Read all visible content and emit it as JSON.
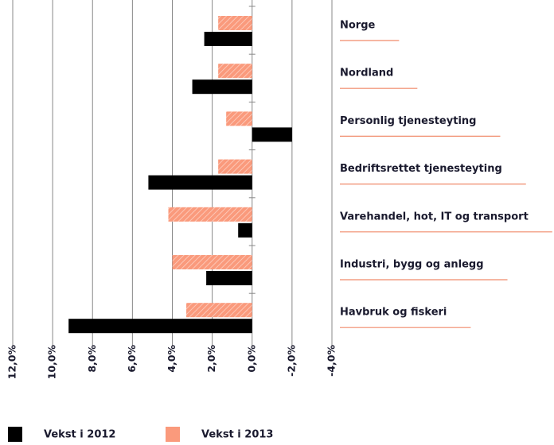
{
  "chart_data": {
    "type": "bar",
    "orientation": "horizontal",
    "reversed_x": true,
    "categories": [
      "Norge",
      "Nordland",
      "Personlig tjenesteyting",
      "Bedriftsrettet tjenesteyting",
      "Varehandel, hot, IT og transport",
      "Industri, bygg og anlegg",
      "Havbruk og fiskeri"
    ],
    "series": [
      {
        "name": "Vekst i 2012",
        "color": "#000000",
        "values": [
          2.4,
          3.0,
          -2.0,
          5.2,
          0.7,
          2.3,
          9.2
        ]
      },
      {
        "name": "Vekst i 2013",
        "color": "#fa9a7c",
        "hatch": true,
        "values": [
          1.7,
          1.7,
          1.3,
          1.7,
          4.2,
          4.0,
          3.3
        ]
      }
    ],
    "xlim": [
      12,
      -4
    ],
    "xticks": [
      {
        "value": 12,
        "label": "12,0%"
      },
      {
        "value": 10,
        "label": "10,0%"
      },
      {
        "value": 8,
        "label": "8,0%"
      },
      {
        "value": 6,
        "label": "6,0%"
      },
      {
        "value": 4,
        "label": "4,0%"
      },
      {
        "value": 2,
        "label": "2,0%"
      },
      {
        "value": 0,
        "label": "0,0%"
      },
      {
        "value": -2,
        "label": "-2,0%"
      },
      {
        "value": -4,
        "label": "-4,0%"
      }
    ],
    "grid": true,
    "legend": "bottom-left"
  }
}
